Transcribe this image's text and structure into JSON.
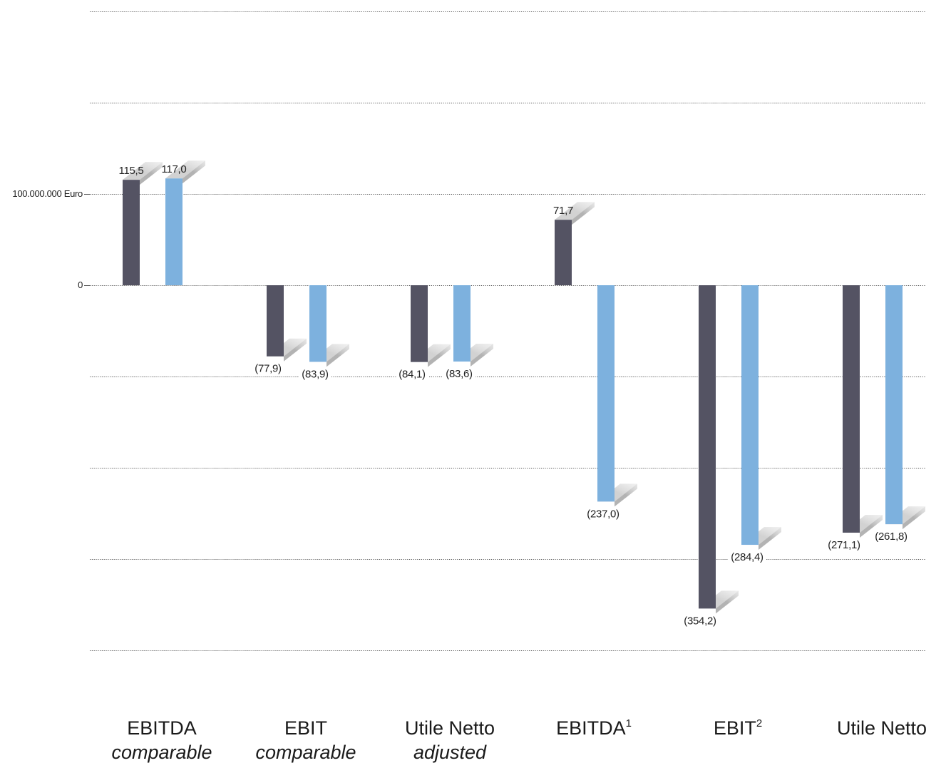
{
  "chart_data": {
    "type": "bar",
    "ylim": [
      -400,
      300
    ],
    "tick_labels": [
      {
        "value": 100,
        "label": "100.000.000 Euro"
      },
      {
        "value": 0,
        "label": "0"
      }
    ],
    "grid": true,
    "categories": [
      {
        "main": "EBITDA",
        "sub": "comparable",
        "sup": ""
      },
      {
        "main": "EBIT",
        "sub": "comparable",
        "sup": ""
      },
      {
        "main": "Utile Netto",
        "sub": "adjusted",
        "sup": ""
      },
      {
        "main": "EBITDA",
        "sub": "",
        "sup": "1"
      },
      {
        "main": "EBIT",
        "sub": "",
        "sup": "2"
      },
      {
        "main": "Utile Netto",
        "sub": "",
        "sup": ""
      }
    ],
    "series": [
      {
        "color": "#545363",
        "values": [
          115.5,
          -77.9,
          -84.1,
          71.7,
          -354.2,
          -271.1
        ],
        "labels": [
          "115,5",
          "(77,9)",
          "(84,1)",
          "71,7",
          "(354,2)",
          "(271,1)"
        ]
      },
      {
        "color": "#7db1de",
        "values": [
          117.0,
          -83.9,
          -83.6,
          -237.0,
          -284.4,
          -261.8
        ],
        "labels": [
          "117,0",
          "(83,9)",
          "(83,6)",
          "(237,0)",
          "(284,4)",
          "(261,8)"
        ]
      }
    ]
  }
}
